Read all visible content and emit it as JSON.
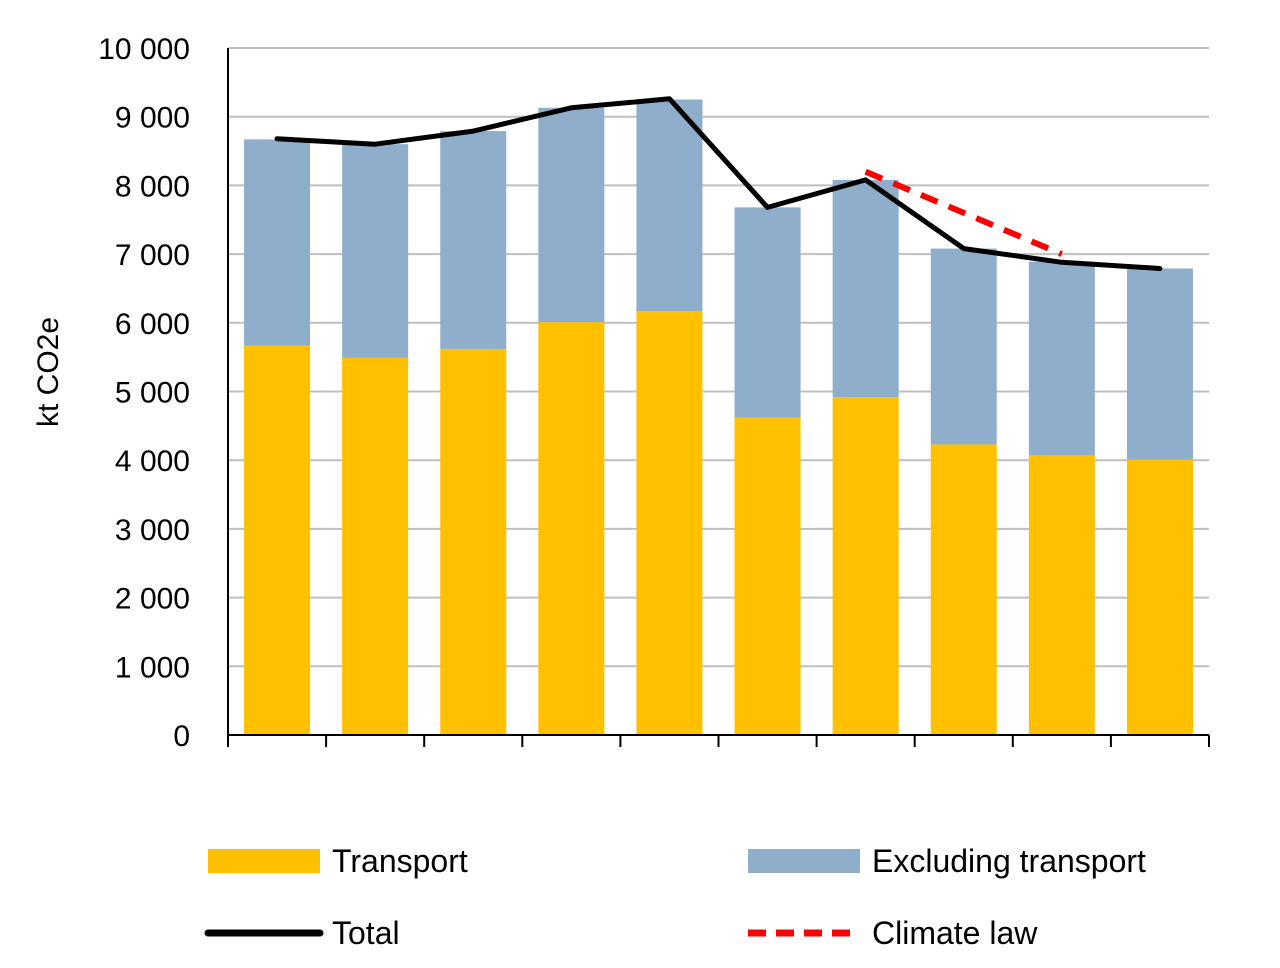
{
  "chart_data": {
    "type": "bar",
    "stacked": true,
    "xlabel": "",
    "ylabel": "kt CO2e",
    "ylim": [
      0,
      10000
    ],
    "yticks": [
      "0",
      "1 000",
      "2 000",
      "3 000",
      "4 000",
      "5 000",
      "6 000",
      "7 000",
      "8 000",
      "9 000",
      "10 000"
    ],
    "grid": true,
    "category_count": 10,
    "series": [
      {
        "name": "Transport",
        "type": "bar",
        "color": "#FFC000",
        "values": [
          5670,
          5490,
          5620,
          6010,
          6170,
          4620,
          4920,
          4230,
          4070,
          4010
        ]
      },
      {
        "name": "Excluding transport",
        "type": "bar",
        "color": "#8EAECB",
        "values": [
          3000,
          3110,
          3170,
          3120,
          3080,
          3060,
          3160,
          2850,
          2820,
          2780
        ]
      },
      {
        "name": "Total",
        "type": "line",
        "color": "#000000",
        "line_style": "solid",
        "values": [
          8680,
          8600,
          8790,
          9130,
          9260,
          7680,
          8080,
          7080,
          6880,
          6790
        ]
      },
      {
        "name": "Climate law",
        "type": "line",
        "color": "#FF0000",
        "line_style": "dashed",
        "start_index": 6,
        "values": [
          8200,
          7600,
          7000
        ]
      }
    ],
    "legend": {
      "position": "bottom",
      "items": [
        {
          "label": "Transport",
          "swatch": "box",
          "color": "#FFC000"
        },
        {
          "label": "Excluding transport",
          "swatch": "box",
          "color": "#8EAECB"
        },
        {
          "label": "Total",
          "swatch": "line",
          "color": "#000000"
        },
        {
          "label": "Climate law",
          "swatch": "dashed-line",
          "color": "#FF0000"
        }
      ]
    }
  }
}
